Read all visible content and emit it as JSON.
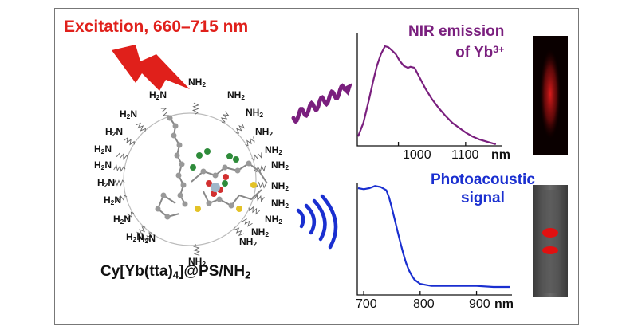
{
  "excitation": {
    "text": "Excitation, 660–715 nm",
    "color": "#e0201b"
  },
  "nir_title": {
    "line1": "NIR emission",
    "line2": "of Yb",
    "sup": "3+",
    "color": "#7a1f7e"
  },
  "pa_title": {
    "line1": "Photoacoustic",
    "line2": "signal",
    "color": "#1a2fd0"
  },
  "formula": {
    "part1": "Cy[Yb(tta)",
    "sub1": "4",
    "part2": "]@PS/NH",
    "sub2": "2"
  },
  "amine": {
    "nh2": "NH",
    "h2n": "H",
    "n": "N",
    "sub": "2"
  },
  "chart_data": [
    {
      "type": "line",
      "name": "nir-emission",
      "x_ticks": [
        "1000",
        "1100"
      ],
      "x_unit": "nm",
      "xlim": [
        940,
        1150
      ],
      "color": "#7a1f7e",
      "x": [
        940,
        948,
        956,
        962,
        968,
        974,
        980,
        985,
        990,
        996,
        1002,
        1008,
        1014,
        1018,
        1024,
        1030,
        1040,
        1050,
        1060,
        1070,
        1080,
        1090,
        1100,
        1110,
        1120,
        1130,
        1140,
        1145
      ],
      "y": [
        0.08,
        0.22,
        0.45,
        0.63,
        0.8,
        0.92,
        1.0,
        0.99,
        0.96,
        0.92,
        0.85,
        0.8,
        0.78,
        0.79,
        0.78,
        0.7,
        0.57,
        0.46,
        0.37,
        0.29,
        0.22,
        0.17,
        0.12,
        0.08,
        0.05,
        0.03,
        0.01,
        0.0
      ]
    },
    {
      "type": "line",
      "name": "photoacoustic-signal",
      "x_ticks": [
        "700",
        "800",
        "900"
      ],
      "x_unit": "nm",
      "xlim": [
        690,
        960
      ],
      "color": "#1a2fd0",
      "x": [
        690,
        700,
        710,
        720,
        730,
        740,
        745,
        750,
        755,
        760,
        765,
        770,
        775,
        780,
        785,
        790,
        800,
        810,
        820,
        830,
        850,
        870,
        900,
        930,
        960
      ],
      "y": [
        0.97,
        0.96,
        0.97,
        0.99,
        0.98,
        0.95,
        0.88,
        0.78,
        0.67,
        0.56,
        0.45,
        0.35,
        0.26,
        0.19,
        0.14,
        0.1,
        0.06,
        0.05,
        0.04,
        0.04,
        0.04,
        0.04,
        0.04,
        0.03,
        0.03
      ]
    }
  ]
}
